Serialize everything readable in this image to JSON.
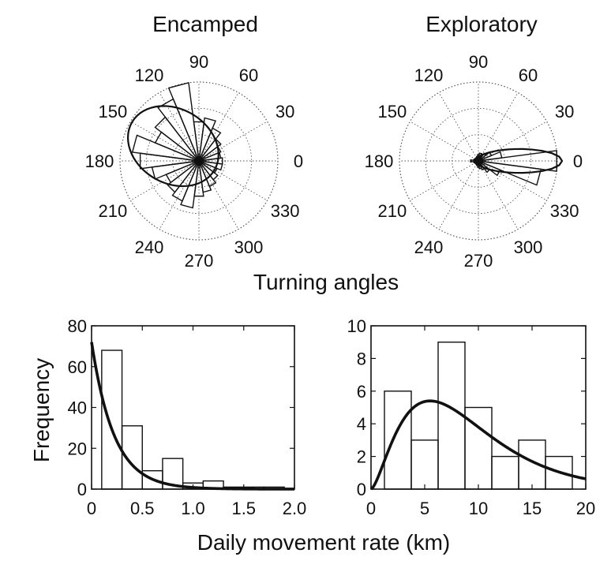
{
  "figure": {
    "polar_caption": "Turning angles",
    "hist_xlabel": "Daily movement rate (km)",
    "hist_ylabel": "Frequency"
  },
  "chart_data": [
    {
      "type": "polar-histogram",
      "title": "Encamped",
      "angle_labels": [
        "0",
        "30",
        "60",
        "90",
        "120",
        "150",
        "180",
        "210",
        "240",
        "270",
        "300",
        "330"
      ],
      "bin_width_deg": 15,
      "bins": [
        {
          "angle": 0,
          "r": 0.3
        },
        {
          "angle": 15,
          "r": 0.28
        },
        {
          "angle": 30,
          "r": 0.3
        },
        {
          "angle": 45,
          "r": 0.35
        },
        {
          "angle": 60,
          "r": 0.45
        },
        {
          "angle": 75,
          "r": 0.55
        },
        {
          "angle": 90,
          "r": 0.5
        },
        {
          "angle": 105,
          "r": 1.0
        },
        {
          "angle": 120,
          "r": 0.85
        },
        {
          "angle": 135,
          "r": 0.7
        },
        {
          "angle": 150,
          "r": 0.6
        },
        {
          "angle": 165,
          "r": 0.85
        },
        {
          "angle": 180,
          "r": 0.75
        },
        {
          "angle": 195,
          "r": 0.6
        },
        {
          "angle": 210,
          "r": 0.45
        },
        {
          "angle": 225,
          "r": 0.5
        },
        {
          "angle": 240,
          "r": 0.55
        },
        {
          "angle": 255,
          "r": 0.6
        },
        {
          "angle": 270,
          "r": 0.45
        },
        {
          "angle": 285,
          "r": 0.4
        },
        {
          "angle": 300,
          "r": 0.35
        },
        {
          "angle": 315,
          "r": 0.3
        },
        {
          "angle": 330,
          "r": 0.25
        },
        {
          "angle": 345,
          "r": 0.3
        }
      ],
      "fit": {
        "type": "wrapped-cauchy",
        "mean_angle_deg": 150,
        "rho": 0.35
      }
    },
    {
      "type": "polar-histogram",
      "title": "Exploratory",
      "angle_labels": [
        "0",
        "30",
        "60",
        "90",
        "120",
        "150",
        "180",
        "210",
        "240",
        "270",
        "300",
        "330"
      ],
      "bin_width_deg": 15,
      "bins": [
        {
          "angle": 0,
          "r": 1.0
        },
        {
          "angle": 15,
          "r": 0.3
        },
        {
          "angle": 30,
          "r": 0.18
        },
        {
          "angle": 45,
          "r": 0.12
        },
        {
          "angle": 60,
          "r": 0.1
        },
        {
          "angle": 75,
          "r": 0.1
        },
        {
          "angle": 90,
          "r": 0.08
        },
        {
          "angle": 105,
          "r": 0.06
        },
        {
          "angle": 120,
          "r": 0.05
        },
        {
          "angle": 135,
          "r": 0.05
        },
        {
          "angle": 150,
          "r": 0.05
        },
        {
          "angle": 165,
          "r": 0.06
        },
        {
          "angle": 180,
          "r": 0.1
        },
        {
          "angle": 195,
          "r": 0.06
        },
        {
          "angle": 210,
          "r": 0.05
        },
        {
          "angle": 225,
          "r": 0.05
        },
        {
          "angle": 240,
          "r": 0.05
        },
        {
          "angle": 255,
          "r": 0.06
        },
        {
          "angle": 270,
          "r": 0.08
        },
        {
          "angle": 285,
          "r": 0.1
        },
        {
          "angle": 300,
          "r": 0.12
        },
        {
          "angle": 315,
          "r": 0.18
        },
        {
          "angle": 330,
          "r": 0.3
        },
        {
          "angle": 345,
          "r": 0.8
        }
      ],
      "fit": {
        "type": "wrapped-cauchy",
        "mean_angle_deg": 0,
        "rho": 0.75
      }
    },
    {
      "type": "histogram",
      "x": [
        0.2,
        0.4,
        0.6,
        0.8,
        1.0,
        1.2,
        1.4,
        1.6,
        1.8
      ],
      "bin_width": 0.2,
      "values": [
        68,
        31,
        9,
        15,
        3,
        4,
        1,
        1,
        1
      ],
      "xlim": [
        0,
        2.0
      ],
      "ylim": [
        0,
        80
      ],
      "xticks": [
        {
          "v": 0,
          "label": "0"
        },
        {
          "v": 0.5,
          "label": "0.5"
        },
        {
          "v": 1.0,
          "label": "1.0"
        },
        {
          "v": 1.5,
          "label": "1.5"
        },
        {
          "v": 2.0,
          "label": "2.0"
        }
      ],
      "yticks": [
        {
          "v": 0,
          "label": "0"
        },
        {
          "v": 20,
          "label": "20"
        },
        {
          "v": 40,
          "label": "40"
        },
        {
          "v": 60,
          "label": "60"
        },
        {
          "v": 80,
          "label": "80"
        }
      ],
      "fit": {
        "type": "exponential",
        "y0": 72,
        "rate": 4.5
      }
    },
    {
      "type": "histogram",
      "x": [
        2.5,
        5,
        7.5,
        10,
        12.5,
        15,
        17.5
      ],
      "bin_width": 2.5,
      "values": [
        6,
        3,
        9,
        5,
        2,
        3,
        2
      ],
      "xlim": [
        0,
        20
      ],
      "ylim": [
        0,
        10
      ],
      "xticks": [
        {
          "v": 0,
          "label": "0"
        },
        {
          "v": 5,
          "label": "5"
        },
        {
          "v": 10,
          "label": "10"
        },
        {
          "v": 15,
          "label": "15"
        },
        {
          "v": 20,
          "label": "20"
        }
      ],
      "yticks": [
        {
          "v": 0,
          "label": "0"
        },
        {
          "v": 2,
          "label": "2"
        },
        {
          "v": 4,
          "label": "4"
        },
        {
          "v": 6,
          "label": "6"
        },
        {
          "v": 8,
          "label": "8"
        },
        {
          "v": 10,
          "label": "10"
        }
      ],
      "fit": {
        "type": "gamma",
        "peak_x": 5.5,
        "peak_y": 5.4
      }
    }
  ]
}
